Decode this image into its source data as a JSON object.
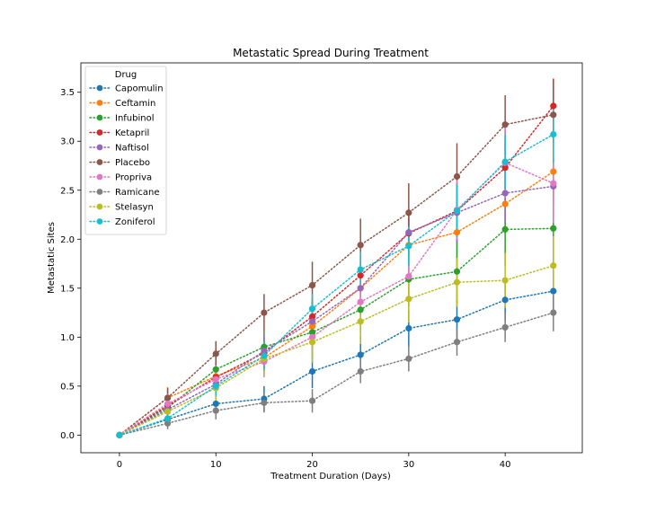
{
  "chart_data": {
    "type": "line",
    "title": "Metastatic Spread During Treatment",
    "xlabel": "Treatment Duration (Days)",
    "ylabel": "Metastatic Sites",
    "xlim": [
      -4,
      48
    ],
    "ylim": [
      -0.18,
      3.8
    ],
    "xticks": [
      0,
      10,
      20,
      30,
      40
    ],
    "yticks": [
      0.0,
      0.5,
      1.0,
      1.5,
      2.0,
      2.5,
      3.0,
      3.5
    ],
    "ytick_labels": [
      "0.0",
      "0.5",
      "1.0",
      "1.5",
      "2.0",
      "2.5",
      "3.0",
      "3.5"
    ],
    "grid": false,
    "legend": {
      "title": "Drug",
      "placement": "top-left"
    },
    "x": [
      0,
      5,
      10,
      15,
      20,
      25,
      30,
      35,
      40,
      45
    ],
    "series": [
      {
        "name": "Capomulin",
        "color": "#1f77b4",
        "values": [
          0.0,
          0.16,
          0.32,
          0.37,
          0.65,
          0.82,
          1.09,
          1.18,
          1.38,
          1.47
        ],
        "errors": [
          0.0,
          0.07,
          0.09,
          0.13,
          0.17,
          0.19,
          0.19,
          0.2,
          0.22,
          0.22
        ]
      },
      {
        "name": "Ceftamin",
        "color": "#ff7f0e",
        "values": [
          0.0,
          0.38,
          0.6,
          0.79,
          1.11,
          1.5,
          1.94,
          2.07,
          2.36,
          2.69
        ],
        "errors": [
          0.0,
          0.11,
          0.15,
          0.18,
          0.24,
          0.26,
          0.28,
          0.29,
          0.31,
          0.34
        ]
      },
      {
        "name": "Infubinol",
        "color": "#2ca02c",
        "values": [
          0.0,
          0.28,
          0.67,
          0.9,
          1.05,
          1.28,
          1.59,
          1.67,
          2.1,
          2.11
        ],
        "errors": [
          0.0,
          0.09,
          0.14,
          0.16,
          0.24,
          0.24,
          0.28,
          0.32,
          0.37,
          0.4
        ]
      },
      {
        "name": "Ketapril",
        "color": "#d62728",
        "values": [
          0.0,
          0.3,
          0.59,
          0.84,
          1.21,
          1.63,
          2.06,
          2.29,
          2.73,
          3.36
        ],
        "errors": [
          0.0,
          0.1,
          0.14,
          0.15,
          0.18,
          0.2,
          0.21,
          0.22,
          0.26,
          0.28
        ]
      },
      {
        "name": "Naftisol",
        "color": "#9467bd",
        "values": [
          0.0,
          0.26,
          0.52,
          0.86,
          1.16,
          1.5,
          2.07,
          2.27,
          2.47,
          2.54
        ],
        "errors": [
          0.0,
          0.09,
          0.14,
          0.17,
          0.2,
          0.24,
          0.24,
          0.3,
          0.3,
          0.3
        ]
      },
      {
        "name": "Placebo",
        "color": "#8c564b",
        "values": [
          0.0,
          0.38,
          0.83,
          1.25,
          1.53,
          1.94,
          2.27,
          2.64,
          3.17,
          3.27
        ],
        "errors": [
          0.0,
          0.1,
          0.13,
          0.19,
          0.24,
          0.27,
          0.3,
          0.34,
          0.3,
          0.32
        ]
      },
      {
        "name": "Propriva",
        "color": "#e377c2",
        "values": [
          0.0,
          0.32,
          0.57,
          0.75,
          1.0,
          1.36,
          1.62,
          2.3,
          2.78,
          2.57
        ],
        "errors": [
          0.0,
          0.1,
          0.14,
          0.16,
          0.18,
          0.2,
          0.22,
          0.3,
          0.36,
          0.4
        ]
      },
      {
        "name": "Ramicane",
        "color": "#7f7f7f",
        "values": [
          0.0,
          0.12,
          0.25,
          0.33,
          0.35,
          0.65,
          0.78,
          0.95,
          1.1,
          1.25
        ],
        "errors": [
          0.0,
          0.06,
          0.09,
          0.1,
          0.12,
          0.12,
          0.13,
          0.14,
          0.15,
          0.19
        ]
      },
      {
        "name": "Stelasyn",
        "color": "#bcbd22",
        "values": [
          0.0,
          0.24,
          0.48,
          0.78,
          0.95,
          1.16,
          1.39,
          1.56,
          1.58,
          1.73
        ],
        "errors": [
          0.0,
          0.09,
          0.13,
          0.17,
          0.21,
          0.23,
          0.24,
          0.25,
          0.28,
          0.3
        ]
      },
      {
        "name": "Zoniferol",
        "color": "#17becf",
        "values": [
          0.0,
          0.17,
          0.5,
          0.81,
          1.29,
          1.69,
          1.93,
          2.29,
          2.79,
          3.07
        ],
        "errors": [
          0.0,
          0.07,
          0.1,
          0.15,
          0.15,
          0.18,
          0.2,
          0.27,
          0.28,
          0.3
        ]
      }
    ]
  }
}
